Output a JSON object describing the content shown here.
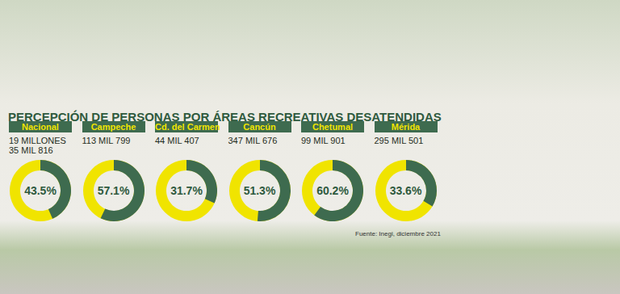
{
  "title": "PERCEPCIÓN DE PERSONAS POR ÁREAS RECREATIVAS DESATENDIDAS",
  "source": "Fuente: Inegi, diciembre 2021",
  "chart_data": [
    {
      "type": "pie",
      "title": "Nacional",
      "subtitle": "19 MILLONES 35 MIL 816",
      "values": [
        43.5
      ],
      "value_labels": [
        "43.5%"
      ],
      "colors": [
        "#3e6b4f"
      ],
      "data_labels": true
    },
    {
      "type": "pie",
      "title": "Campeche",
      "subtitle": "113 MIL 799",
      "values": [
        57.1
      ],
      "value_labels": [
        "57.1%"
      ],
      "colors": [
        "#3e6b4f"
      ],
      "data_labels": true
    },
    {
      "type": "pie",
      "title": "Cd. del Carmen",
      "subtitle": "44 MIL 407",
      "values": [
        31.7
      ],
      "value_labels": [
        "31.7%"
      ],
      "colors": [
        "#3e6b4f"
      ],
      "data_labels": true
    },
    {
      "type": "pie",
      "title": "Cancún",
      "subtitle": "347 MIL 676",
      "values": [
        51.3
      ],
      "value_labels": [
        "51.3%"
      ],
      "colors": [
        "#3e6b4f"
      ],
      "data_labels": true
    },
    {
      "type": "pie",
      "title": "Chetumal",
      "subtitle": "99 MIL 901",
      "values": [
        60.2
      ],
      "value_labels": [
        "60.2%"
      ],
      "colors": [
        "#3e6b4f"
      ],
      "data_labels": true
    },
    {
      "type": "pie",
      "title": "Mérida",
      "subtitle": "295 MIL 501",
      "values": [
        33.6
      ],
      "value_labels": [
        "33.6%"
      ],
      "colors": [
        "#3e6b4f"
      ],
      "data_labels": true
    }
  ]
}
